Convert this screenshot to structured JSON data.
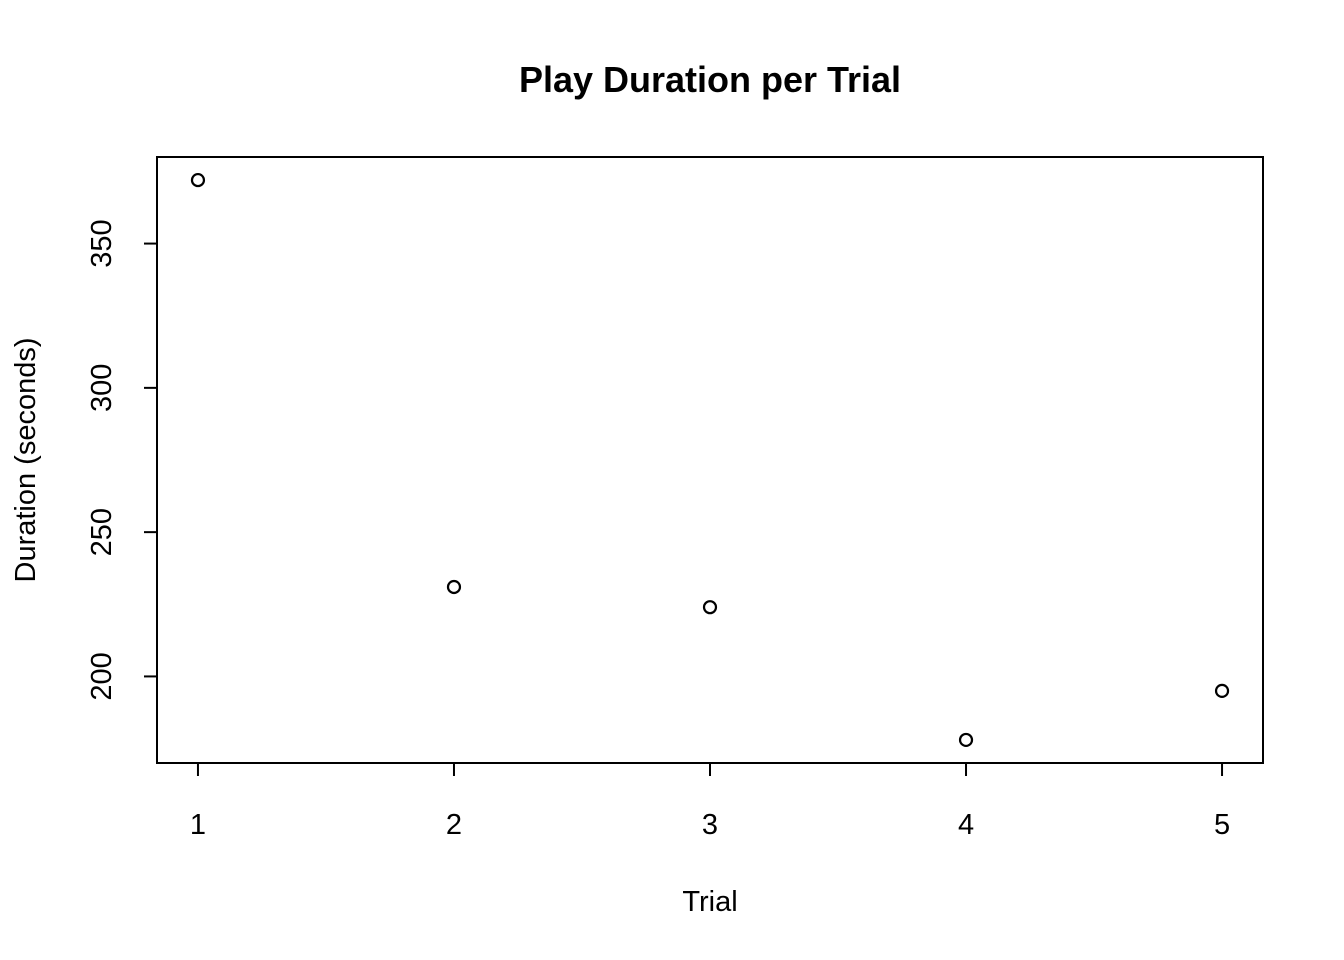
{
  "chart_data": {
    "type": "scatter",
    "title": "Play Duration per Trial",
    "xlabel": "Trial",
    "ylabel": "Duration (seconds)",
    "x": [
      1,
      2,
      3,
      4,
      5
    ],
    "y": [
      372,
      231,
      224,
      178,
      195
    ],
    "xlim": [
      0.84,
      5.16
    ],
    "ylim": [
      170,
      380
    ],
    "x_ticks": [
      "1",
      "2",
      "3",
      "4",
      "5"
    ],
    "y_ticks": [
      "200",
      "250",
      "300",
      "350"
    ],
    "marker": "open-circle",
    "grid": false,
    "legend": "none",
    "colors": {
      "point": "#000000",
      "frame": "#000000",
      "background": "#ffffff"
    }
  }
}
